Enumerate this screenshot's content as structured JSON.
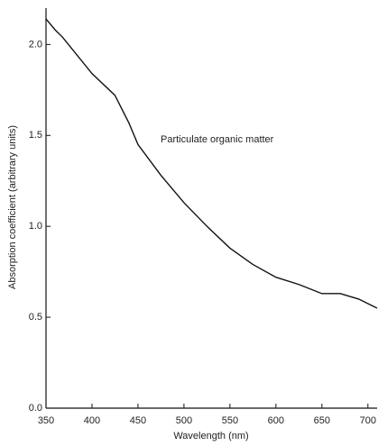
{
  "chart_data": {
    "type": "line",
    "xlabel": "Wavelength (nm)",
    "ylabel": "Absorption coefficient (arbitrary units)",
    "annotation": "Particulate organic matter",
    "x": [
      350,
      360,
      368,
      400,
      425,
      440,
      450,
      475,
      500,
      525,
      550,
      575,
      600,
      625,
      650,
      670,
      690,
      710
    ],
    "values": [
      2.14,
      2.08,
      2.04,
      1.84,
      1.72,
      1.57,
      1.45,
      1.28,
      1.13,
      1.0,
      0.88,
      0.79,
      0.72,
      0.68,
      0.63,
      0.63,
      0.6,
      0.55
    ],
    "color": "#111111",
    "xlim": [
      350,
      710
    ],
    "ylim": [
      0,
      2.2
    ],
    "xticks": [
      350,
      400,
      450,
      500,
      550,
      600,
      650,
      700
    ],
    "yticks": [
      {
        "value": 0,
        "label": "0.0"
      },
      0.5,
      {
        "value": 1,
        "label": "1.0"
      },
      1.5,
      {
        "value": 2,
        "label": "2.0"
      }
    ]
  }
}
